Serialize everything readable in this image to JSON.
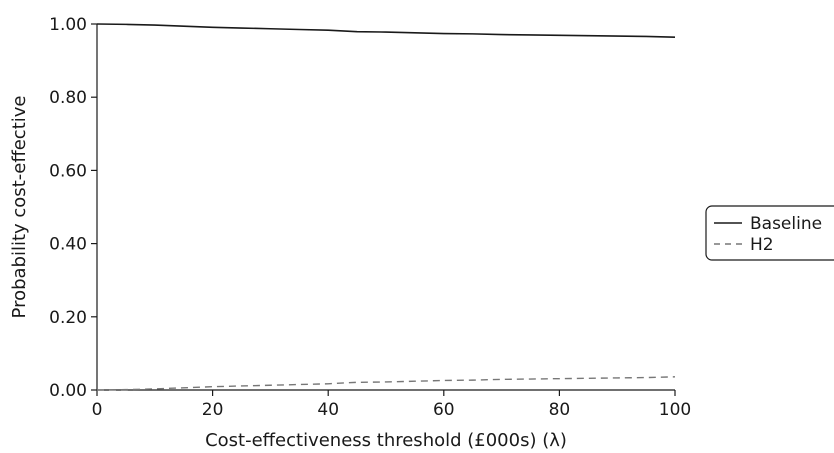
{
  "chart_data": {
    "type": "line",
    "title": "",
    "xlabel": "Cost-effectiveness threshold (£000s) (λ)",
    "ylabel": "Probability cost-effective",
    "xlim": [
      0,
      100
    ],
    "ylim": [
      0,
      1
    ],
    "x_ticks": [
      0,
      20,
      40,
      60,
      80,
      100
    ],
    "x_tick_labels": [
      "0",
      "20",
      "40",
      "60",
      "80",
      "100"
    ],
    "y_ticks": [
      0,
      0.2,
      0.4,
      0.6,
      0.8,
      1.0
    ],
    "y_tick_labels": [
      "0.00",
      "0.20",
      "0.40",
      "0.60",
      "0.80",
      "1.00"
    ],
    "grid": false,
    "legend_position": "right",
    "series": [
      {
        "name": "Baseline",
        "style": "solid",
        "color": "#1a1a1a",
        "x": [
          0,
          5,
          10,
          15,
          20,
          25,
          30,
          35,
          40,
          45,
          50,
          55,
          60,
          65,
          70,
          75,
          80,
          85,
          90,
          95,
          100
        ],
        "y": [
          1.0,
          0.999,
          0.997,
          0.994,
          0.991,
          0.989,
          0.987,
          0.985,
          0.983,
          0.979,
          0.978,
          0.976,
          0.974,
          0.973,
          0.971,
          0.97,
          0.969,
          0.968,
          0.967,
          0.966,
          0.964
        ]
      },
      {
        "name": "H2",
        "style": "dashed",
        "color": "#777777",
        "x": [
          0,
          5,
          10,
          15,
          20,
          25,
          30,
          35,
          40,
          45,
          50,
          55,
          60,
          65,
          70,
          75,
          80,
          85,
          90,
          95,
          100
        ],
        "y": [
          0.0,
          0.001,
          0.003,
          0.006,
          0.009,
          0.011,
          0.013,
          0.015,
          0.017,
          0.021,
          0.022,
          0.024,
          0.026,
          0.027,
          0.029,
          0.03,
          0.031,
          0.032,
          0.033,
          0.034,
          0.036
        ]
      }
    ]
  }
}
